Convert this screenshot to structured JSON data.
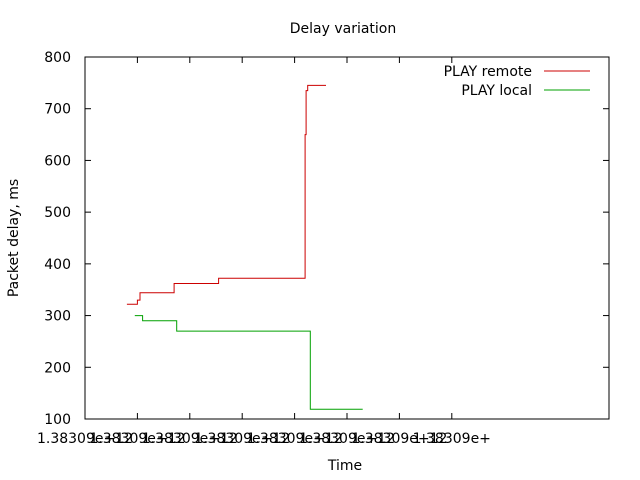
{
  "chart_data": {
    "type": "line",
    "title": "Delay variation",
    "xlabel": "Time",
    "ylabel": "Packet delay, ms",
    "xlim": [
      0,
      10
    ],
    "ylim": [
      100,
      800
    ],
    "grid": false,
    "legend_position": "top-right",
    "x_ticks": [
      {
        "value": 0,
        "label": "1.38309e+12"
      },
      {
        "value": 1,
        "label": "1.38309e+12"
      },
      {
        "value": 2,
        "label": "1.38309e+12"
      },
      {
        "value": 3,
        "label": "1.38309e+12"
      },
      {
        "value": 4,
        "label": "1.38309e+12"
      },
      {
        "value": 5,
        "label": "1.38309e+12"
      },
      {
        "value": 6,
        "label": "1.38309e+12"
      },
      {
        "value": 7,
        "label": "1.38309e+"
      }
    ],
    "y_ticks": [
      100,
      200,
      300,
      400,
      500,
      600,
      700,
      800
    ],
    "series": [
      {
        "name": "PLAY remote",
        "color": "#cc0000",
        "x": [
          0.8,
          1.0,
          1.0,
          1.05,
          1.05,
          1.7,
          1.7,
          2.55,
          2.55,
          4.2,
          4.2,
          4.22,
          4.22,
          4.25,
          4.25,
          4.6
        ],
        "y": [
          322,
          322,
          330,
          330,
          344,
          344,
          362,
          362,
          372,
          372,
          650,
          650,
          735,
          735,
          745,
          745
        ]
      },
      {
        "name": "PLAY local",
        "color": "#00a000",
        "x": [
          0.95,
          1.1,
          1.1,
          1.75,
          1.75,
          4.3,
          4.3,
          5.3
        ],
        "y": [
          300,
          300,
          290,
          290,
          270,
          270,
          119,
          119
        ]
      }
    ]
  }
}
